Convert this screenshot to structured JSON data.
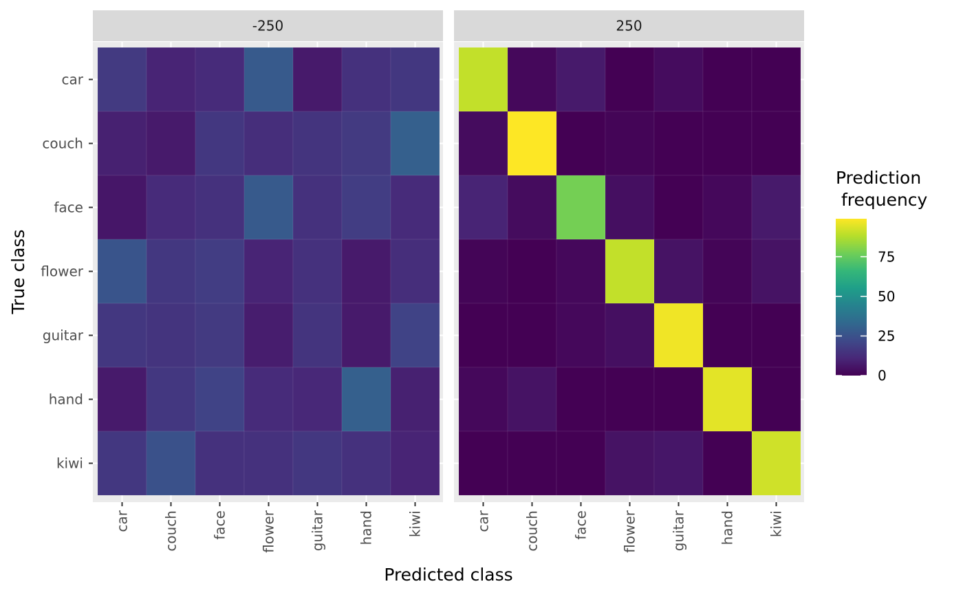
{
  "chart_data": {
    "type": "heatmap",
    "title": "",
    "xlabel": "Predicted class",
    "ylabel": "True class",
    "categories_x": [
      "car",
      "couch",
      "face",
      "flower",
      "guitar",
      "hand",
      "kiwi"
    ],
    "categories_y": [
      "car",
      "couch",
      "face",
      "flower",
      "guitar",
      "hand",
      "kiwi"
    ],
    "panels": [
      {
        "label": "-250",
        "values": [
          [
            17,
            10,
            12,
            28,
            7,
            14,
            16
          ],
          [
            9,
            7,
            16,
            13,
            15,
            17,
            30
          ],
          [
            6,
            12,
            14,
            28,
            14,
            18,
            12
          ],
          [
            26,
            16,
            18,
            10,
            14,
            7,
            13
          ],
          [
            16,
            15,
            17,
            8,
            15,
            7,
            20
          ],
          [
            7,
            16,
            20,
            12,
            11,
            30,
            9
          ],
          [
            16,
            25,
            14,
            14,
            16,
            14,
            10
          ]
        ]
      },
      {
        "label": "250",
        "values": [
          [
            90,
            2,
            7,
            0,
            3,
            0,
            0
          ],
          [
            3,
            99,
            0,
            1,
            0,
            0,
            0
          ],
          [
            10,
            3,
            78,
            4,
            0,
            2,
            7
          ],
          [
            1,
            0,
            2,
            90,
            5,
            1,
            5
          ],
          [
            0,
            0,
            2,
            4,
            97,
            0,
            0
          ],
          [
            2,
            5,
            0,
            0,
            0,
            95,
            0
          ],
          [
            0,
            0,
            0,
            5,
            6,
            0,
            92
          ]
        ]
      }
    ],
    "colorbar": {
      "title_line1": "Prediction",
      "title_line2": " frequency",
      "palette": "viridis",
      "min": 0,
      "max": 99,
      "ticks": [
        0,
        25,
        50,
        75
      ]
    },
    "legend_position": "right",
    "grid": true
  }
}
